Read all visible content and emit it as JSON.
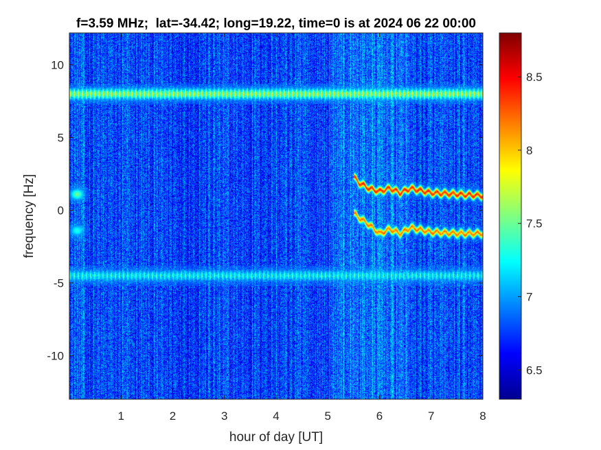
{
  "chart_data": {
    "type": "heatmap",
    "title": "f=3.59 MHz;  lat=-34.42; long=19.22, time=0 is at 2024 06 22 00:00",
    "xlabel": "hour of day [UT]",
    "ylabel": "frequency [Hz]",
    "xlim": [
      0,
      8
    ],
    "ylim": [
      -13,
      12.2
    ],
    "xticks": [
      1,
      2,
      3,
      4,
      5,
      6,
      7,
      8
    ],
    "xtick_labels": [
      "1",
      "2",
      "3",
      "4",
      "5",
      "6",
      "7",
      "8"
    ],
    "yticks": [
      10,
      5,
      0,
      -5,
      -10
    ],
    "ytick_labels": [
      "10",
      "5",
      "0",
      "-5",
      "-10"
    ],
    "colormap": "jet",
    "clim": [
      6.3,
      8.8
    ],
    "colorbar_ticks": [
      8.5,
      8,
      7.5,
      7,
      6.5
    ],
    "colorbar_tick_labels": [
      "8.5",
      "8",
      "7.5",
      "7",
      "6.5"
    ],
    "features": [
      {
        "kind": "horizontal band",
        "frequency_hz": 8.0,
        "x_range": [
          0,
          8
        ],
        "level": 7.9
      },
      {
        "kind": "horizontal band",
        "frequency_hz": -4.5,
        "x_range": [
          0,
          8
        ],
        "level": 7.4
      },
      {
        "kind": "trace",
        "points": [
          [
            5.5,
            2.3
          ],
          [
            5.6,
            1.9
          ],
          [
            5.8,
            1.5
          ],
          [
            6.0,
            1.3
          ],
          [
            6.2,
            1.5
          ],
          [
            6.4,
            1.2
          ],
          [
            6.6,
            1.5
          ],
          [
            7.0,
            1.2
          ],
          [
            7.5,
            1.1
          ],
          [
            8.0,
            1.0
          ]
        ],
        "level": 8.4
      },
      {
        "kind": "trace",
        "points": [
          [
            5.5,
            -0.2
          ],
          [
            5.6,
            -0.5
          ],
          [
            5.8,
            -1.0
          ],
          [
            6.0,
            -1.6
          ],
          [
            6.2,
            -1.3
          ],
          [
            6.4,
            -1.6
          ],
          [
            6.6,
            -1.2
          ],
          [
            7.0,
            -1.5
          ],
          [
            7.5,
            -1.6
          ],
          [
            8.0,
            -1.6
          ]
        ],
        "level": 8.2
      },
      {
        "kind": "spot",
        "x": 0.15,
        "frequency_hz": 1.1,
        "level": 7.5
      },
      {
        "kind": "spot",
        "x": 0.15,
        "frequency_hz": -1.4,
        "level": 7.3
      }
    ],
    "background_level": 6.75,
    "grid": false
  }
}
